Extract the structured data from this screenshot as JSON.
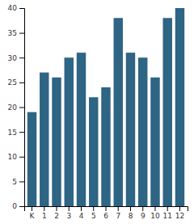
{
  "chart_data": {
    "type": "bar",
    "categories": [
      "K",
      "1",
      "2",
      "3",
      "4",
      "5",
      "6",
      "7",
      "8",
      "9",
      "10",
      "11",
      "12"
    ],
    "values": [
      19,
      27,
      26,
      30,
      31,
      22,
      24,
      38,
      31,
      30,
      26,
      38,
      40
    ],
    "color": "#2e6484",
    "ylim": [
      0,
      40
    ],
    "yticks": [
      0,
      5,
      10,
      15,
      20,
      25,
      30,
      35,
      40
    ],
    "grid": false
  }
}
